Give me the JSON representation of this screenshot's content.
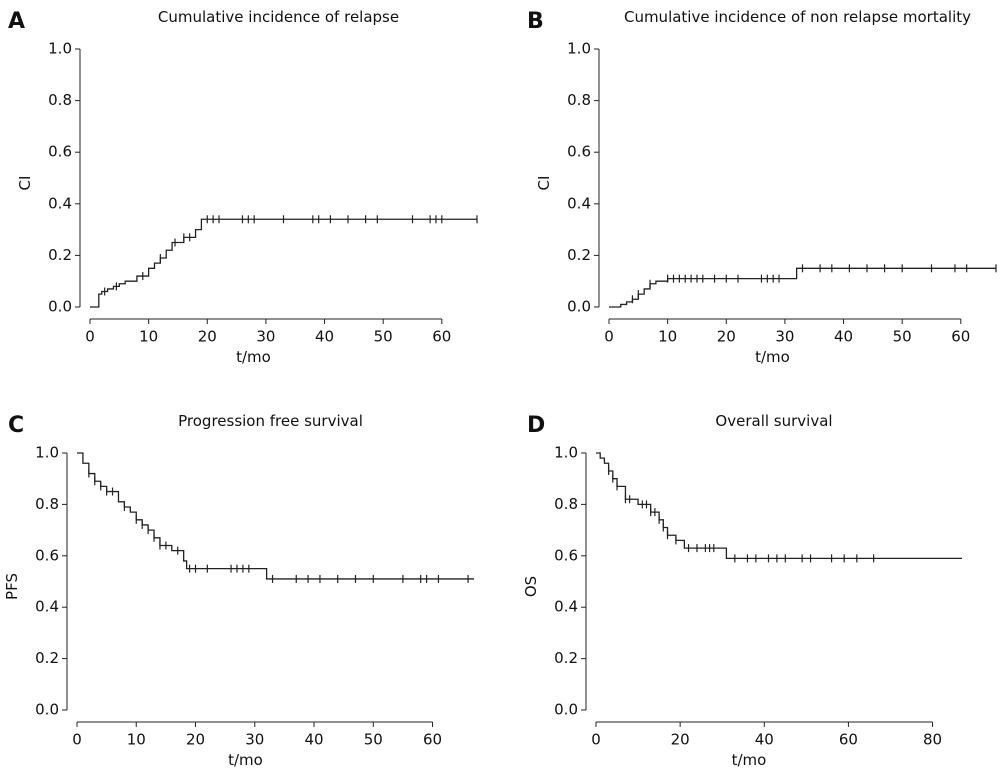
{
  "chart_data": [
    {
      "type": "step",
      "panel": "A",
      "title": "Cumulative incidence of relapse",
      "x_label": "t/mo",
      "y_label": "CI",
      "color": "#222222",
      "xlim": [
        0,
        66
      ],
      "ylim": [
        0,
        1
      ],
      "xticks": [
        0,
        10,
        20,
        30,
        40,
        50,
        60
      ],
      "yticks": [
        {
          "value": 0,
          "label": "0.0"
        },
        {
          "value": 0.2,
          "label": "0.2"
        },
        {
          "value": 0.4,
          "label": "0.4"
        },
        {
          "value": 0.6,
          "label": "0.6"
        },
        {
          "value": 0.8,
          "label": "0.8"
        },
        {
          "value": 1,
          "label": "1.0"
        }
      ],
      "x": [
        0,
        1.5,
        2,
        3,
        4,
        5,
        6,
        8,
        10,
        11,
        12,
        13,
        14,
        16,
        18,
        19,
        66
      ],
      "values": [
        0,
        0.05,
        0.06,
        0.07,
        0.08,
        0.09,
        0.1,
        0.12,
        0.15,
        0.17,
        0.19,
        0.22,
        0.25,
        0.27,
        0.3,
        0.34,
        0.34
      ],
      "censored": [
        2.5,
        4.5,
        9,
        12,
        14.5,
        16,
        17,
        20,
        21,
        22,
        26,
        27,
        28,
        33,
        38,
        39,
        41,
        44,
        47,
        49,
        55,
        58,
        59,
        60,
        66
      ]
    },
    {
      "type": "step",
      "panel": "B",
      "title": "Cumulative incidence of non relapse mortality",
      "x_label": "t/mo",
      "y_label": "CI",
      "color": "#222222",
      "xlim": [
        0,
        66
      ],
      "ylim": [
        0,
        1
      ],
      "xticks": [
        0,
        10,
        20,
        30,
        40,
        50,
        60
      ],
      "yticks": [
        {
          "value": 0,
          "label": "0.0"
        },
        {
          "value": 0.2,
          "label": "0.2"
        },
        {
          "value": 0.4,
          "label": "0.4"
        },
        {
          "value": 0.6,
          "label": "0.6"
        },
        {
          "value": 0.8,
          "label": "0.8"
        },
        {
          "value": 1,
          "label": "1.0"
        }
      ],
      "x": [
        0,
        2,
        3,
        4,
        5,
        6,
        7,
        8,
        10,
        32,
        66
      ],
      "values": [
        0,
        0.01,
        0.02,
        0.03,
        0.05,
        0.07,
        0.09,
        0.1,
        0.11,
        0.15,
        0.15
      ],
      "censored": [
        4,
        5,
        7,
        10,
        11,
        12,
        13,
        14,
        15,
        16,
        18,
        20,
        22,
        26,
        27,
        28,
        29,
        33,
        36,
        38,
        41,
        44,
        47,
        50,
        55,
        59,
        61,
        66
      ]
    },
    {
      "type": "step",
      "panel": "C",
      "title": "Progression free survival",
      "x_label": "t/mo",
      "y_label": "PFS",
      "color": "#222222",
      "xlim": [
        0,
        67
      ],
      "ylim": [
        0,
        1
      ],
      "xticks": [
        0,
        10,
        20,
        30,
        40,
        50,
        60
      ],
      "yticks": [
        {
          "value": 0,
          "label": "0.0"
        },
        {
          "value": 0.2,
          "label": "0.2"
        },
        {
          "value": 0.4,
          "label": "0.4"
        },
        {
          "value": 0.6,
          "label": "0.6"
        },
        {
          "value": 0.8,
          "label": "0.8"
        },
        {
          "value": 1,
          "label": "1.0"
        }
      ],
      "x": [
        0,
        1,
        2,
        3,
        4,
        5,
        7,
        8,
        9,
        10,
        11,
        12,
        13,
        14,
        16,
        18,
        18.5,
        32,
        67
      ],
      "values": [
        1,
        0.96,
        0.92,
        0.89,
        0.87,
        0.85,
        0.81,
        0.79,
        0.77,
        0.74,
        0.72,
        0.7,
        0.67,
        0.64,
        0.62,
        0.58,
        0.55,
        0.51,
        0.51
      ],
      "censored": [
        2,
        3,
        4,
        5,
        6,
        8,
        10,
        11,
        12,
        13,
        14,
        15,
        17,
        19,
        20,
        22,
        26,
        27,
        28,
        29,
        33,
        37,
        39,
        41,
        44,
        47,
        50,
        55,
        58,
        59,
        61,
        66
      ]
    },
    {
      "type": "step",
      "panel": "D",
      "title": "Overall survival",
      "x_label": "t/mo",
      "y_label": "OS",
      "color": "#222222",
      "xlim": [
        0,
        87
      ],
      "ylim": [
        0,
        1
      ],
      "xticks": [
        0,
        20,
        40,
        60,
        80
      ],
      "yticks": [
        {
          "value": 0,
          "label": "0.0"
        },
        {
          "value": 0.2,
          "label": "0.2"
        },
        {
          "value": 0.4,
          "label": "0.4"
        },
        {
          "value": 0.6,
          "label": "0.6"
        },
        {
          "value": 0.8,
          "label": "0.8"
        },
        {
          "value": 1,
          "label": "1.0"
        }
      ],
      "x": [
        0,
        1,
        2,
        3,
        4,
        5,
        7,
        10,
        13,
        15,
        16,
        17,
        19,
        21,
        31,
        87
      ],
      "values": [
        1,
        0.98,
        0.96,
        0.93,
        0.9,
        0.87,
        0.82,
        0.8,
        0.77,
        0.74,
        0.71,
        0.68,
        0.66,
        0.63,
        0.59,
        0.59
      ],
      "censored": [
        3,
        4,
        5,
        7,
        8,
        11,
        12,
        13,
        14,
        15,
        16,
        17,
        19,
        22,
        24,
        26,
        27,
        28,
        33,
        36,
        38,
        41,
        43,
        45,
        49,
        51,
        56,
        59,
        62,
        66
      ]
    }
  ]
}
